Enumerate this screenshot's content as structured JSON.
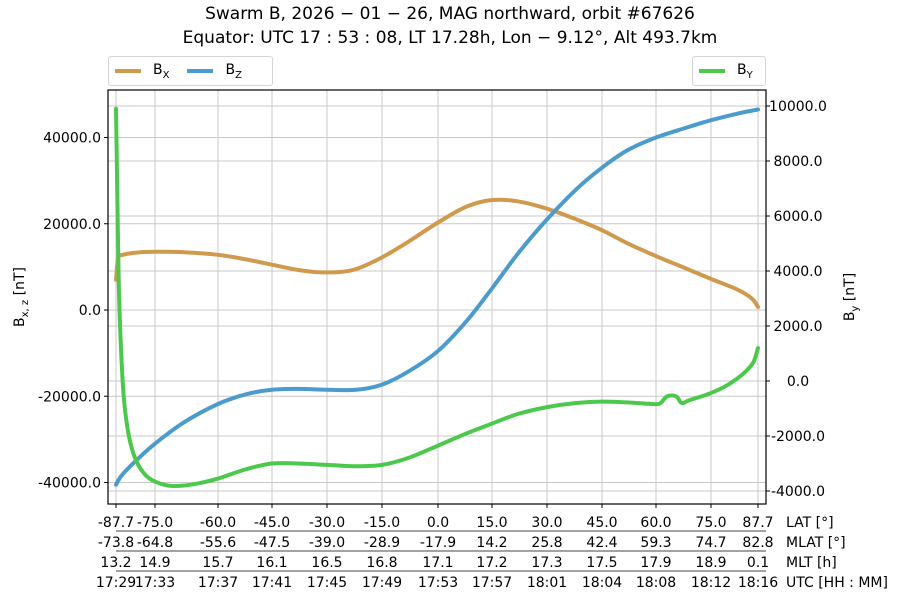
{
  "title": {
    "line1": "Swarm B,  2026 − 01 − 26,  MAG northward,  orbit #67626",
    "line2": "Equator:  UTC 17 : 53 : 08,  LT 17.28h,  Lon  − 9.12°,  Alt 493.7km"
  },
  "legend_left": [
    {
      "label": "B",
      "sub": "X",
      "color": "#d09a4e"
    },
    {
      "label": "B",
      "sub": "Z",
      "color": "#4c9bcd"
    }
  ],
  "legend_right": [
    {
      "label": "B",
      "sub": "Y",
      "color": "#4cc94c"
    }
  ],
  "axes": {
    "left_label": "B",
    "left_label_sub": "x, z",
    "left_label_unit": " [nT]",
    "right_label": "B",
    "right_label_sub": "y",
    "right_label_unit": " [nT]",
    "left_ticks": [
      "40000.0",
      "20000.0",
      "0.0",
      "-20000.0",
      "-40000.0"
    ],
    "right_ticks": [
      "10000.0",
      "8000.0",
      "6000.0",
      "4000.0",
      "2000.0",
      "0.0",
      "-2000.0",
      "-4000.0"
    ]
  },
  "x_rows": [
    {
      "name": "LAT [°]",
      "values": [
        "-87.7",
        "-75.0",
        "-60.0",
        "-45.0",
        "-30.0",
        "-15.0",
        "0.0",
        "15.0",
        "30.0",
        "45.0",
        "60.0",
        "75.0",
        "87.7"
      ]
    },
    {
      "name": "MLAT [°]",
      "values": [
        "-73.8",
        "-64.8",
        "-55.6",
        "-47.5",
        "-39.0",
        "-28.9",
        "-17.9",
        "14.2",
        "25.8",
        "42.4",
        "59.3",
        "74.7",
        "82.8"
      ]
    },
    {
      "name": "MLT [h]",
      "values": [
        "13.2",
        "14.9",
        "15.7",
        "16.1",
        "16.5",
        "16.8",
        "17.1",
        "17.2",
        "17.3",
        "17.5",
        "17.9",
        "18.9",
        "0.1"
      ]
    },
    {
      "name": "UTC [HH : MM]",
      "values": [
        "17:29",
        "17:33",
        "17:37",
        "17:41",
        "17:45",
        "17:49",
        "17:53",
        "17:57",
        "18:01",
        "18:04",
        "18:08",
        "18:12",
        "18:16"
      ]
    }
  ],
  "chart_data": {
    "type": "line",
    "title": "Swarm B, 2026-01-26, MAG northward, orbit #67626 — Equator: UTC 17:53:08, LT 17.28h, Lon -9.12°, Alt 493.7km",
    "xlabel": "LAT [°] / MLAT [°] / MLT [h] / UTC [HH:MM]",
    "ylabel_left": "B_x,z [nT]",
    "ylabel_right": "B_y [nT]",
    "x_ticks": [
      -87.7,
      -75.0,
      -60.0,
      -45.0,
      -30.0,
      -15.0,
      0.0,
      15.0,
      30.0,
      45.0,
      60.0,
      75.0,
      87.7
    ],
    "ylim_left": [
      -44000,
      46000
    ],
    "ylim_right": [
      -4400,
      10400
    ],
    "grid": true,
    "legend_position": "top (Bx, Bz upper-left; By upper-right)",
    "series": [
      {
        "name": "B_X",
        "axis": "left",
        "color": "#d09a4e",
        "x": [
          -87.7,
          -87.0,
          -85.5,
          -81,
          -75,
          -68,
          -60,
          -52,
          -45,
          -38,
          -33,
          -27,
          -22,
          -15,
          -8,
          0,
          8,
          15,
          22,
          30,
          38,
          45,
          52,
          60,
          68,
          75,
          82,
          86,
          87.7
        ],
        "y": [
          7000,
          12000,
          12800,
          13300,
          13500,
          13400,
          12800,
          11700,
          10500,
          9300,
          8800,
          8800,
          9500,
          12200,
          15800,
          20300,
          24000,
          25500,
          25200,
          23500,
          21000,
          18500,
          15500,
          12500,
          9700,
          7200,
          4800,
          2700,
          700
        ]
      },
      {
        "name": "B_Z",
        "axis": "left",
        "color": "#4c9bcd",
        "x": [
          -87.7,
          -86,
          -82,
          -75,
          -68,
          -60,
          -52,
          -45,
          -38,
          -30,
          -22,
          -15,
          -8,
          0,
          8,
          15,
          22,
          30,
          38,
          45,
          52,
          60,
          68,
          75,
          82,
          87.7
        ],
        "y": [
          -40500,
          -38500,
          -35500,
          -31000,
          -26000,
          -21800,
          -19500,
          -18500,
          -18300,
          -18500,
          -18500,
          -17300,
          -14300,
          -9500,
          -2500,
          5000,
          13000,
          21000,
          28000,
          33000,
          37000,
          40000,
          42200,
          44000,
          45500,
          46500
        ]
      },
      {
        "name": "B_Y",
        "axis": "right",
        "color": "#4cc94c",
        "x": [
          -87.7,
          -87.3,
          -86.8,
          -86.0,
          -85.0,
          -83.5,
          -81.5,
          -79,
          -76,
          -72,
          -68,
          -64,
          -60,
          -52,
          -45,
          -38,
          -30,
          -22,
          -15,
          -8,
          0,
          8,
          15,
          22,
          30,
          38,
          45,
          52,
          58,
          61,
          63,
          65.5,
          67,
          69,
          72,
          76,
          80,
          84,
          86.5,
          87.7
        ],
        "y": [
          9900,
          7000,
          3500,
          1000,
          -800,
          -2000,
          -2800,
          -3300,
          -3600,
          -3800,
          -3800,
          -3700,
          -3550,
          -3200,
          -3000,
          -3000,
          -3050,
          -3100,
          -3050,
          -2800,
          -2350,
          -1900,
          -1550,
          -1200,
          -950,
          -800,
          -750,
          -780,
          -830,
          -820,
          -560,
          -560,
          -800,
          -700,
          -580,
          -380,
          -100,
          300,
          700,
          1200
        ]
      }
    ]
  }
}
